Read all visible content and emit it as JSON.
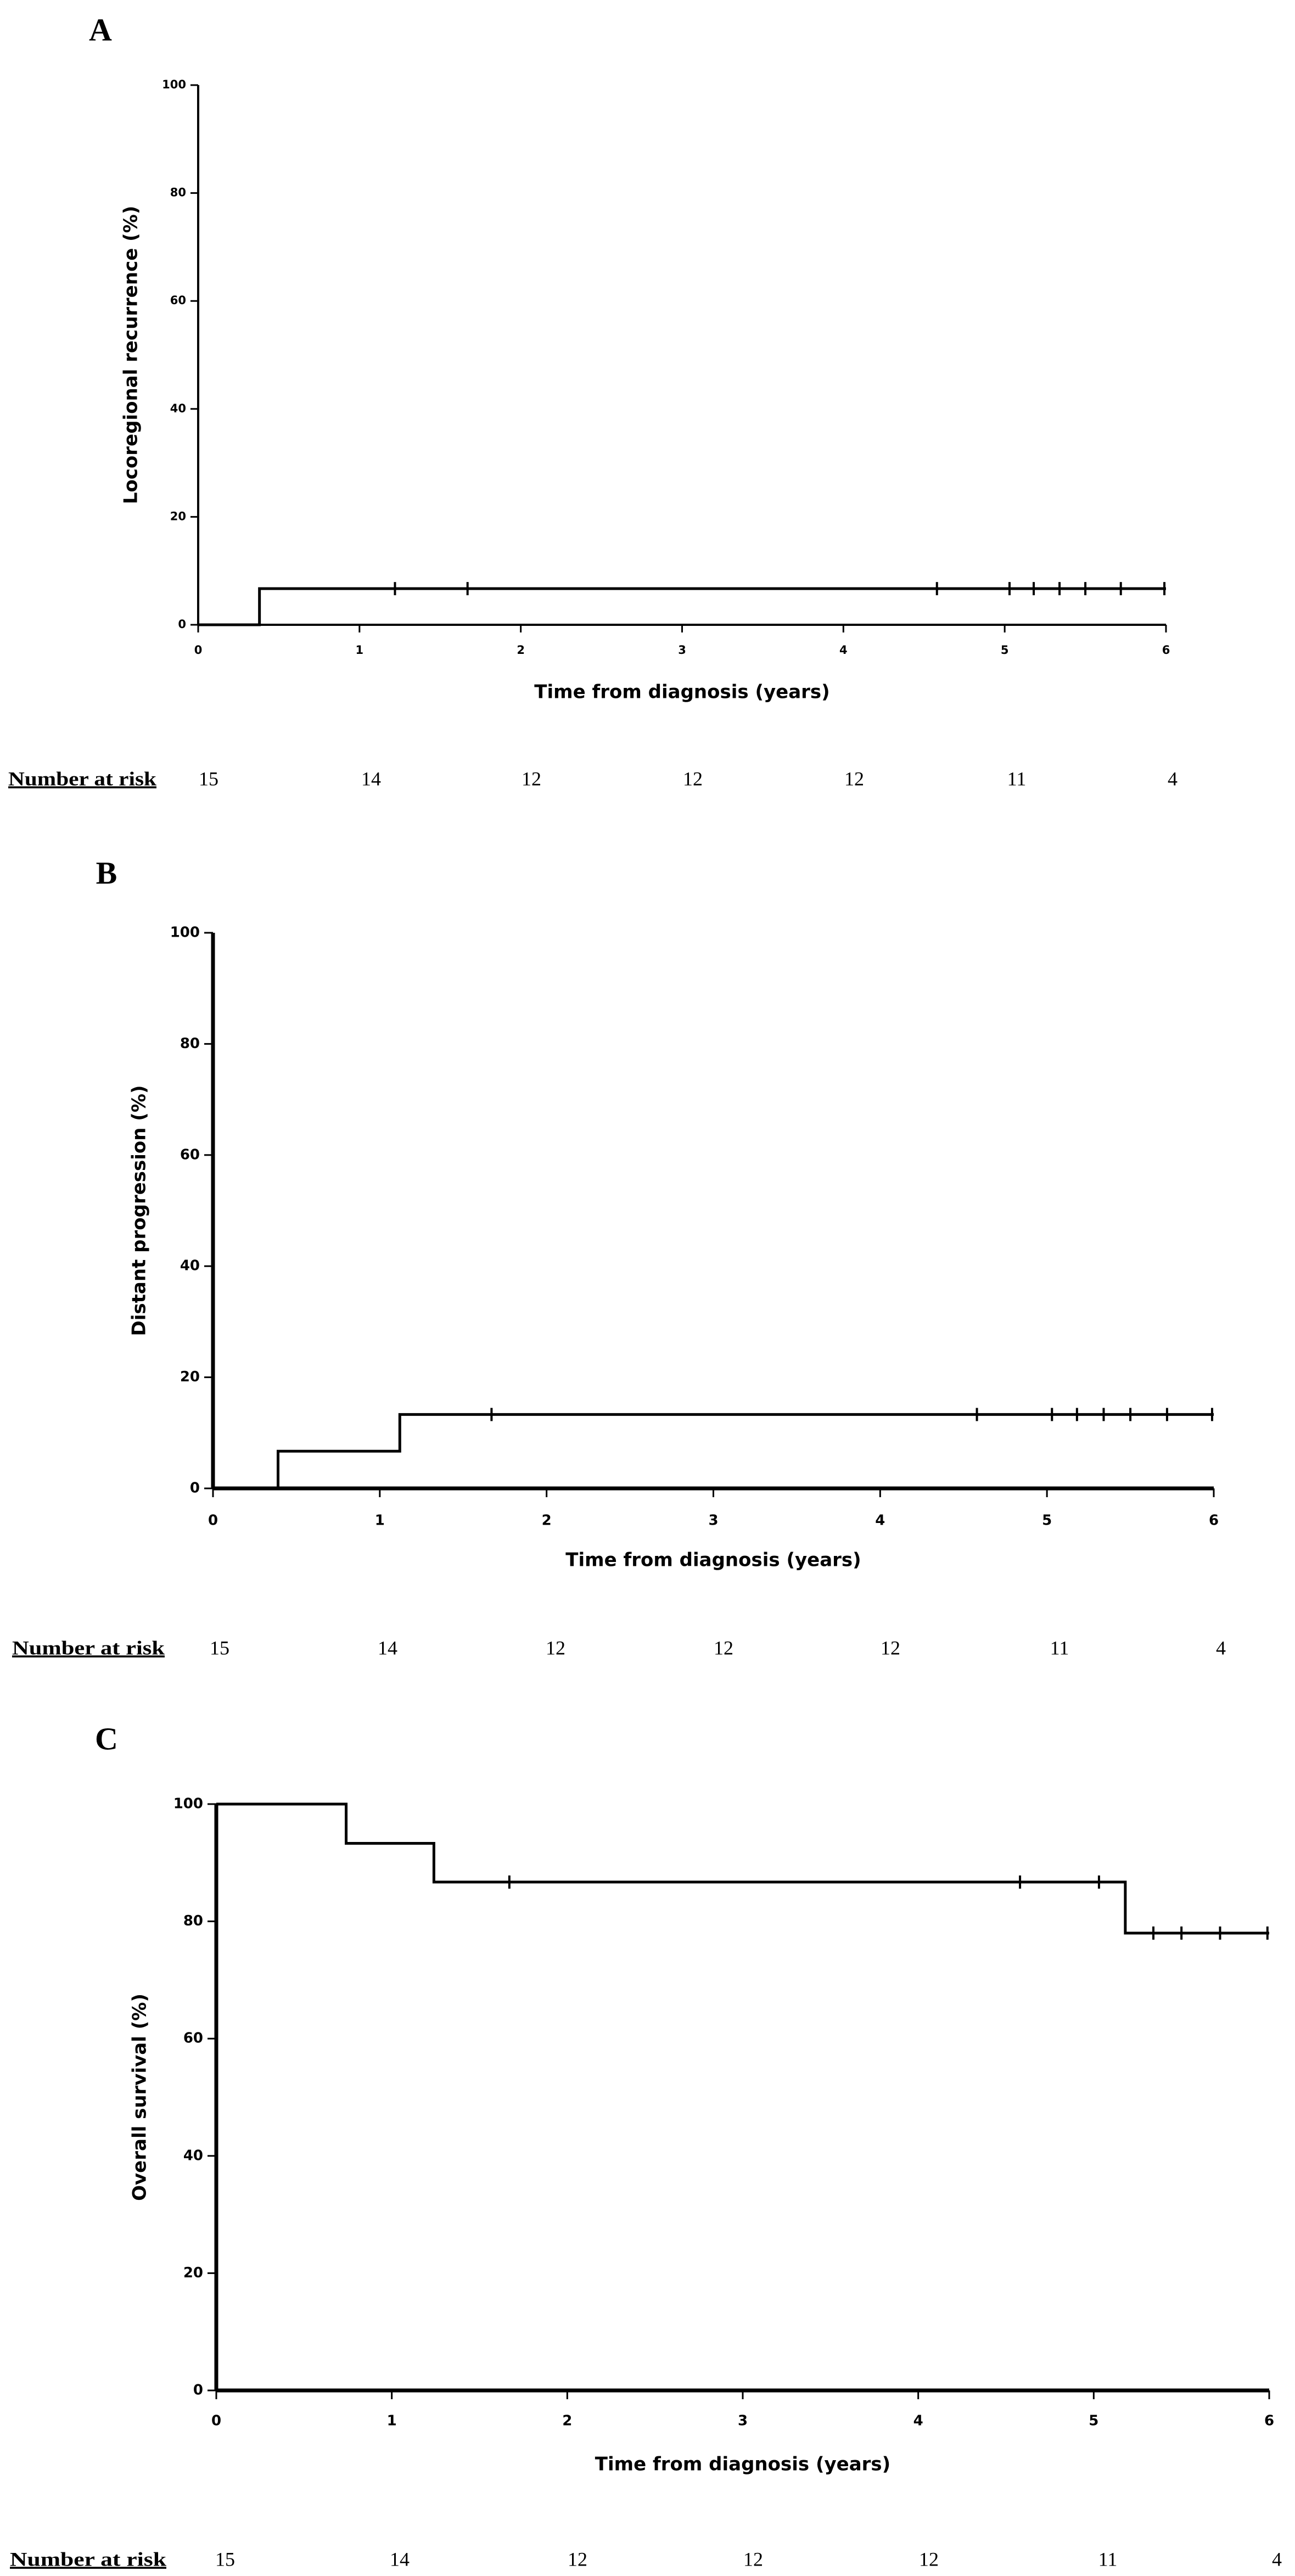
{
  "figure": {
    "panels": [
      "A",
      "B",
      "C"
    ],
    "risk_label": "Number at risk"
  },
  "chart_data": [
    {
      "type": "line",
      "panel_label": "A",
      "title": "",
      "xlabel": "Time from diagnosis (years)",
      "ylabel": "Locoregional recurrence (%)",
      "xlim": [
        0,
        6
      ],
      "ylim": [
        0,
        100
      ],
      "x_ticks": [
        0,
        1,
        2,
        3,
        4,
        5,
        6
      ],
      "y_ticks": [
        0,
        20,
        40,
        60,
        80,
        100
      ],
      "grid": false,
      "series": [
        {
          "name": "Locoregional recurrence",
          "step_x": [
            0,
            0.38,
            6
          ],
          "step_y": [
            0,
            6.7,
            6.7
          ],
          "censor_x": [
            1.22,
            1.67,
            4.58,
            5.03,
            5.18,
            5.34,
            5.5,
            5.72,
            5.99
          ],
          "censor_y": [
            6.7,
            6.7,
            6.7,
            6.7,
            6.7,
            6.7,
            6.7,
            6.7,
            6.7
          ]
        }
      ],
      "number_at_risk": {
        "times": [
          0,
          1,
          2,
          3,
          4,
          5,
          6
        ],
        "values": [
          "15",
          "14",
          "12",
          "12",
          "12",
          "11",
          "4"
        ]
      }
    },
    {
      "type": "line",
      "panel_label": "B",
      "title": "",
      "xlabel": "Time from diagnosis (years)",
      "ylabel": "Distant progression (%)",
      "xlim": [
        0,
        6
      ],
      "ylim": [
        0,
        100
      ],
      "x_ticks": [
        0,
        1,
        2,
        3,
        4,
        5,
        6
      ],
      "y_ticks": [
        0,
        20,
        40,
        60,
        80,
        100
      ],
      "grid": false,
      "series": [
        {
          "name": "Distant progression",
          "step_x": [
            0,
            0.39,
            1.12,
            6
          ],
          "step_y": [
            0,
            6.7,
            13.3,
            13.3
          ],
          "censor_x": [
            1.67,
            4.58,
            5.03,
            5.18,
            5.34,
            5.5,
            5.72,
            5.99
          ],
          "censor_y": [
            13.3,
            13.3,
            13.3,
            13.3,
            13.3,
            13.3,
            13.3,
            13.3
          ]
        }
      ],
      "number_at_risk": {
        "times": [
          0,
          1,
          2,
          3,
          4,
          5,
          6
        ],
        "values": [
          "15",
          "14",
          "12",
          "12",
          "12",
          "11",
          "4"
        ]
      }
    },
    {
      "type": "line",
      "panel_label": "C",
      "title": "",
      "xlabel": "Time from diagnosis (years)",
      "ylabel": "Overall survival (%)",
      "xlim": [
        0,
        6
      ],
      "ylim": [
        0,
        100
      ],
      "x_ticks": [
        0,
        1,
        2,
        3,
        4,
        5,
        6
      ],
      "y_ticks": [
        0,
        20,
        40,
        60,
        80,
        100
      ],
      "grid": false,
      "series": [
        {
          "name": "Overall survival",
          "step_x": [
            0,
            0.74,
            1.24,
            5.18,
            6
          ],
          "step_y": [
            100,
            93.3,
            86.7,
            78,
            78
          ],
          "censor_x": [
            1.67,
            4.58,
            5.03,
            5.34,
            5.5,
            5.72,
            5.99
          ],
          "censor_y": [
            86.7,
            86.7,
            86.7,
            78,
            78,
            78,
            78
          ]
        }
      ],
      "number_at_risk": {
        "times": [
          0,
          1,
          2,
          3,
          4,
          5,
          6
        ],
        "values": [
          "15",
          "14",
          "12",
          "12",
          "12",
          "11",
          "4"
        ]
      }
    }
  ]
}
